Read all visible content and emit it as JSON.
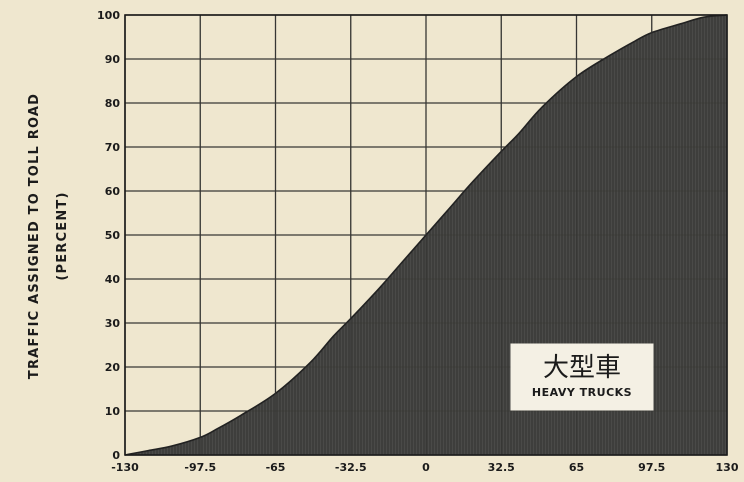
{
  "chart_data": {
    "type": "area",
    "ylabel_line1": "TRAFFIC ASSIGNED TO TOLL ROAD",
    "ylabel_line2": "(PERCENT)",
    "xlabel": "",
    "title": "",
    "xlim": [
      -130,
      130
    ],
    "ylim": [
      0,
      100
    ],
    "x_ticks": [
      -130,
      -97.5,
      -65,
      -32.5,
      0,
      32.5,
      65,
      97.5,
      130
    ],
    "x_tick_labels": [
      "-130",
      "-97.5",
      "-65",
      "-32.5",
      "0",
      "32.5",
      "65",
      "97.5",
      "130"
    ],
    "y_ticks": [
      0,
      10,
      20,
      30,
      40,
      50,
      60,
      70,
      80,
      90,
      100
    ],
    "y_tick_labels": [
      "0",
      "10",
      "20",
      "30",
      "40",
      "50",
      "60",
      "70",
      "80",
      "90",
      "100"
    ],
    "grid": true,
    "legend_position": "bottom-right",
    "series": [
      {
        "legend_cjk": "大型車",
        "legend_en": "HEAVY TRUCKS",
        "x": [
          -130,
          -120,
          -110,
          -97.5,
          -90,
          -80,
          -65,
          -50,
          -40,
          -32.5,
          -20,
          -10,
          0,
          10,
          20,
          32.5,
          40,
          50,
          65,
          80,
          90,
          97.5,
          110,
          120,
          130
        ],
        "y": [
          0,
          1,
          2,
          4,
          6,
          9,
          14,
          21,
          27,
          31,
          38,
          44,
          50,
          56,
          62,
          69,
          73,
          79,
          86,
          91,
          94,
          96,
          98,
          99.5,
          100
        ]
      }
    ]
  },
  "colors": {
    "paper": "#efe7cf",
    "area_fill": "#4a4a48",
    "grid": "#3a3a36",
    "text": "#1b1b1b"
  }
}
